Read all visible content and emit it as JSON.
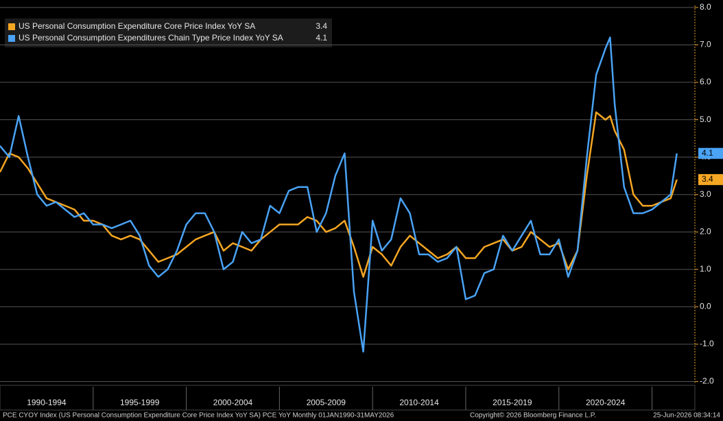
{
  "chart_data": {
    "type": "line",
    "x": [
      1990.0,
      1990.5,
      1991.0,
      1991.5,
      1992.0,
      1992.5,
      1993.0,
      1993.5,
      1994.0,
      1994.5,
      1995.0,
      1995.5,
      1996.0,
      1996.5,
      1997.0,
      1997.5,
      1998.0,
      1998.5,
      1999.0,
      1999.5,
      2000.0,
      2000.5,
      2001.0,
      2001.5,
      2002.0,
      2002.5,
      2003.0,
      2003.5,
      2004.0,
      2004.5,
      2005.0,
      2005.5,
      2006.0,
      2006.5,
      2007.0,
      2007.5,
      2008.0,
      2008.5,
      2009.0,
      2009.5,
      2010.0,
      2010.5,
      2011.0,
      2011.5,
      2012.0,
      2012.5,
      2013.0,
      2013.5,
      2014.0,
      2014.5,
      2015.0,
      2015.5,
      2016.0,
      2016.5,
      2017.0,
      2017.5,
      2018.0,
      2018.5,
      2019.0,
      2019.5,
      2020.0,
      2020.5,
      2021.0,
      2021.5,
      2022.0,
      2022.5,
      2022.75,
      2023.0,
      2023.5,
      2024.0,
      2024.5,
      2025.0,
      2025.5,
      2026.0,
      2026.33
    ],
    "series": [
      {
        "name": "US Personal Consumption Expenditure Core Price Index YoY SA",
        "color": "#f5a623",
        "values": [
          3.6,
          4.1,
          4.0,
          3.7,
          3.3,
          2.9,
          2.8,
          2.7,
          2.6,
          2.3,
          2.3,
          2.2,
          1.9,
          1.8,
          1.9,
          1.8,
          1.5,
          1.2,
          1.3,
          1.4,
          1.6,
          1.8,
          1.9,
          2.0,
          1.5,
          1.7,
          1.6,
          1.5,
          1.8,
          2.0,
          2.2,
          2.2,
          2.2,
          2.4,
          2.3,
          2.0,
          2.1,
          2.3,
          1.6,
          0.8,
          1.6,
          1.4,
          1.1,
          1.6,
          1.9,
          1.7,
          1.5,
          1.3,
          1.4,
          1.6,
          1.3,
          1.3,
          1.6,
          1.7,
          1.8,
          1.5,
          1.6,
          2.0,
          1.8,
          1.6,
          1.7,
          1.0,
          1.5,
          3.5,
          5.2,
          5.0,
          5.1,
          4.7,
          4.2,
          3.0,
          2.7,
          2.7,
          2.8,
          2.9,
          3.4
        ]
      },
      {
        "name": "US Personal Consumption Expenditures Chain Type Price Index YoY SA",
        "color": "#4aa3f5",
        "values": [
          4.3,
          4.0,
          5.1,
          4.0,
          3.0,
          2.7,
          2.8,
          2.6,
          2.4,
          2.5,
          2.2,
          2.2,
          2.1,
          2.2,
          2.3,
          1.9,
          1.1,
          0.8,
          1.0,
          1.5,
          2.2,
          2.5,
          2.5,
          2.0,
          1.0,
          1.2,
          2.0,
          1.7,
          1.8,
          2.7,
          2.5,
          3.1,
          3.2,
          3.2,
          2.0,
          2.5,
          3.5,
          4.1,
          0.4,
          -1.2,
          2.3,
          1.5,
          1.8,
          2.9,
          2.5,
          1.4,
          1.4,
          1.2,
          1.3,
          1.6,
          0.2,
          0.3,
          0.9,
          1.0,
          1.9,
          1.5,
          1.9,
          2.3,
          1.4,
          1.4,
          1.8,
          0.8,
          1.5,
          4.0,
          6.2,
          6.9,
          7.2,
          5.4,
          3.2,
          2.5,
          2.5,
          2.6,
          2.8,
          3.0,
          4.1
        ]
      }
    ],
    "xlim": [
      1990,
      2027.3
    ],
    "xticks": [
      {
        "value": 1992.5,
        "label": "1990-1994"
      },
      {
        "value": 1997.5,
        "label": "1995-1999"
      },
      {
        "value": 2002.5,
        "label": "2000-2004"
      },
      {
        "value": 2007.5,
        "label": "2005-2009"
      },
      {
        "value": 2012.5,
        "label": "2010-2014"
      },
      {
        "value": 2017.5,
        "label": "2015-2019"
      },
      {
        "value": 2022.5,
        "label": "2020-2024"
      }
    ],
    "ylim": [
      -2.1,
      8.2
    ],
    "yticks": [
      {
        "value": -2,
        "label": "-2.0"
      },
      {
        "value": -1,
        "label": "-1.0"
      },
      {
        "value": 0,
        "label": "0.0"
      },
      {
        "value": 1,
        "label": "1.0"
      },
      {
        "value": 2,
        "label": "2.0"
      },
      {
        "value": 3,
        "label": "3.0"
      },
      {
        "value": 4,
        "label": "4.0"
      },
      {
        "value": 5,
        "label": "5.0"
      },
      {
        "value": 6,
        "label": "6.0"
      },
      {
        "value": 7,
        "label": "7.0"
      },
      {
        "value": 8,
        "label": "8.0"
      }
    ],
    "grid": true,
    "legend": "upper left",
    "footer_left": "PCE CYOY Index (US Personal Consumption Expenditure Core Price Index YoY SA) PCE YoY Monthly 01JAN1990-31MAY2026",
    "footer_center": "Copyright© 2026 Bloomberg Finance L.P.",
    "footer_right": "25-Jun-2026 08:34:14"
  }
}
